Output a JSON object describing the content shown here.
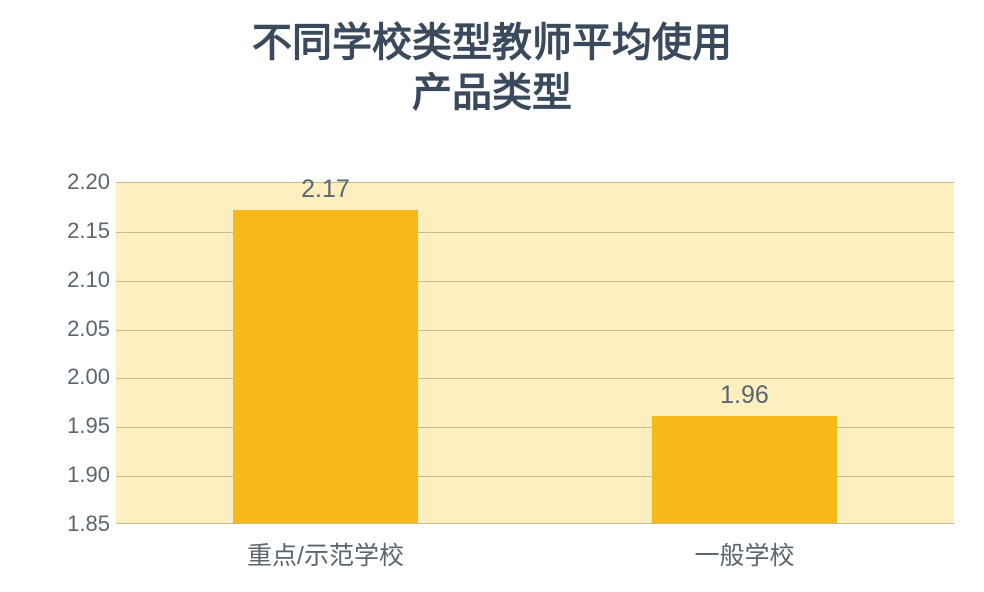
{
  "chart": {
    "type": "bar",
    "title_line1": "不同学校类型教师平均使用",
    "title_line2": "产品类型",
    "title_fontsize": 40,
    "title_color": "#3a4a5c",
    "ylim": [
      1.85,
      2.2
    ],
    "ytick_step": 0.05,
    "yticks": [
      "1.85",
      "1.90",
      "1.95",
      "2.00",
      "2.05",
      "2.10",
      "2.15",
      "2.20"
    ],
    "ytick_fontsize": 22,
    "ytick_color": "#5a6670",
    "categories": [
      "重点/示范学校",
      "一般学校"
    ],
    "values": [
      2.17,
      1.96
    ],
    "value_labels": [
      "2.17",
      "1.96"
    ],
    "bar_color": "#f7b91a",
    "plot_background_color": "#fdefc0",
    "grid_color": "#c9b98a",
    "label_fontsize": 25,
    "xtick_fontsize": 25,
    "bar_width_ratio": 0.44
  }
}
